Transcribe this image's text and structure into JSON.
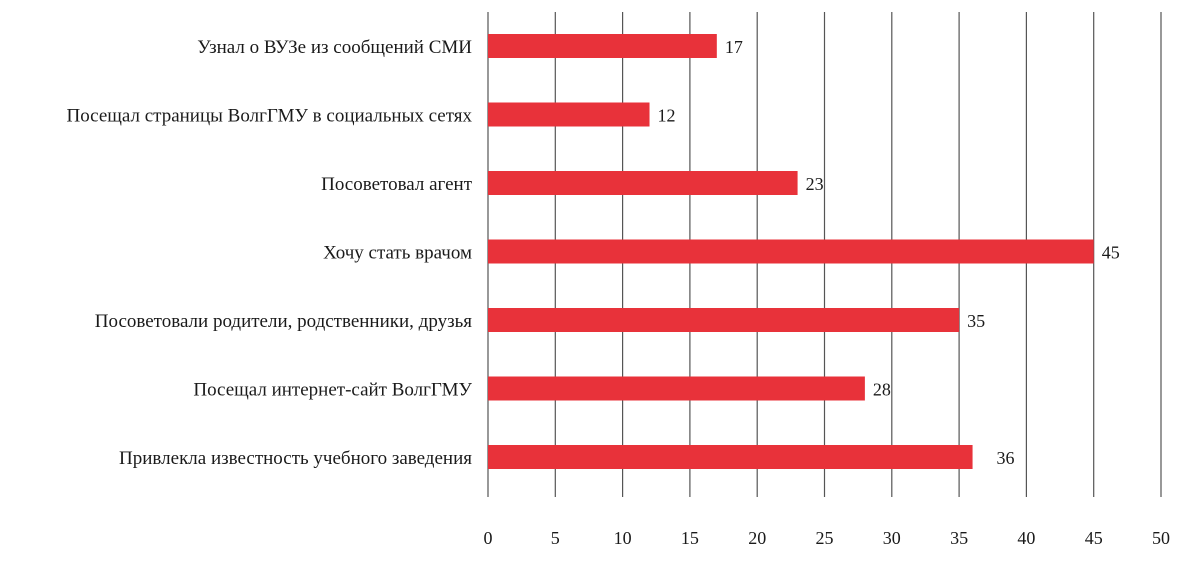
{
  "chart_data": {
    "type": "bar",
    "orientation": "horizontal",
    "categories": [
      "Узнал о ВУЗе из сообщений СМИ",
      "Посещал страницы ВолгГМУ в социальных сетях",
      "Посоветовал агент",
      "Хочу стать врачом",
      "Посоветовали родители, родственники, друзья",
      "Посещал интернет-сайт ВолгГМУ",
      "Привлекла известность учебного заведения"
    ],
    "values": [
      17,
      12,
      23,
      45,
      35,
      28,
      36
    ],
    "data_labels": [
      "17",
      "12",
      "23",
      "45",
      "35",
      "28",
      "36"
    ],
    "xlim": [
      0,
      50
    ],
    "ticks": [
      0,
      5,
      10,
      15,
      20,
      25,
      30,
      35,
      40,
      45,
      50
    ],
    "tick_labels": [
      "0",
      "5",
      "10",
      "15",
      "20",
      "25",
      "30",
      "35",
      "40",
      "45",
      "50"
    ],
    "grid": "vertical",
    "legend": "none",
    "bar_color": "#e8323a",
    "grid_color": "#555555",
    "title": "",
    "xlabel": "",
    "ylabel": ""
  }
}
